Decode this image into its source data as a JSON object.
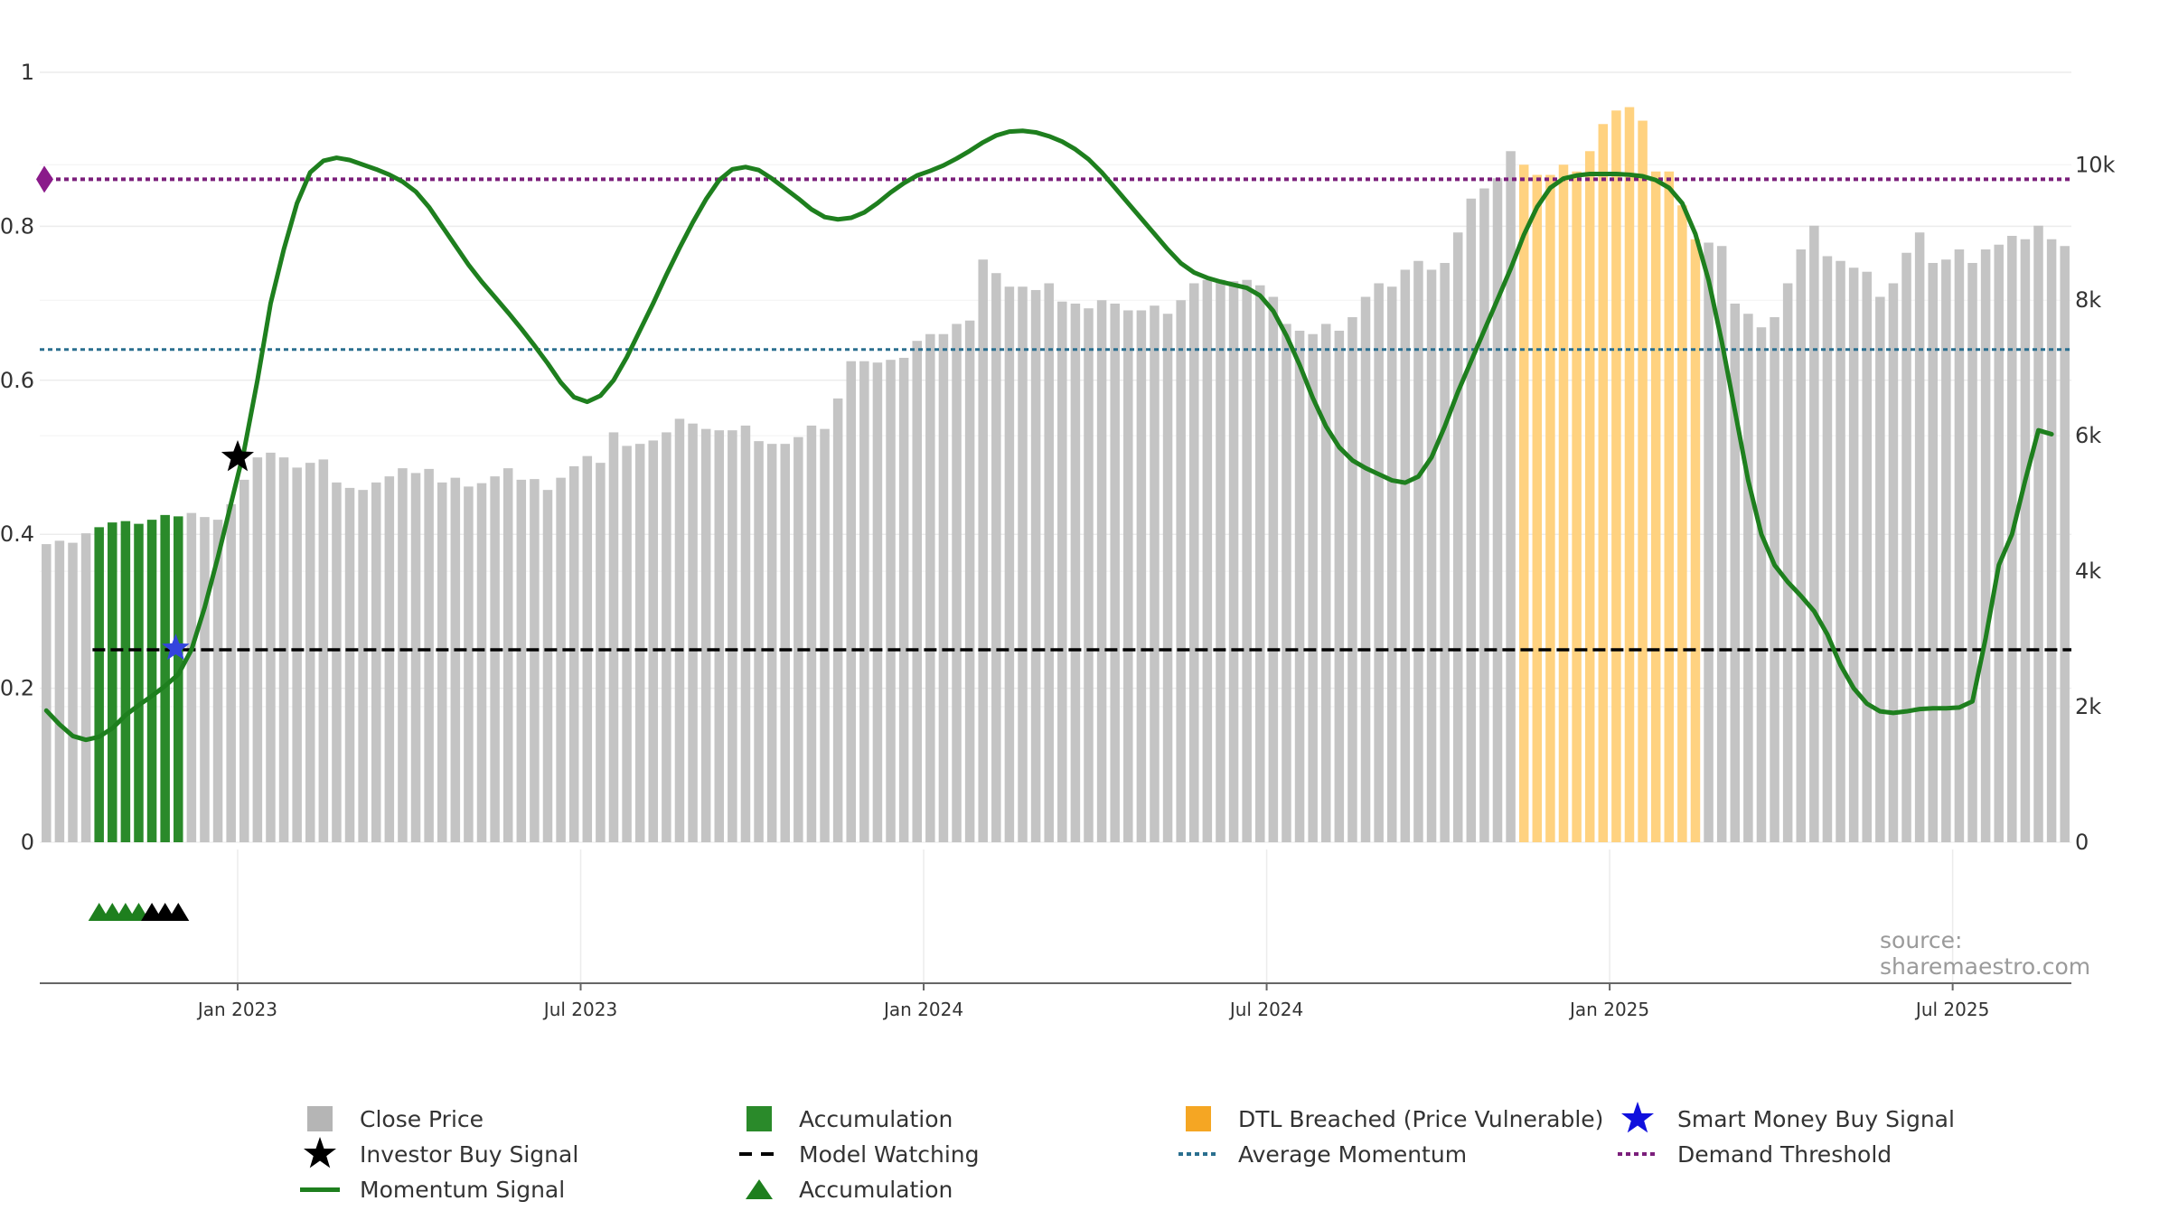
{
  "source_text": "source: sharemaestro.com",
  "chart_data": {
    "type": "bar",
    "left_axis": {
      "ticks": [
        "0",
        "0.2",
        "0.4",
        "0.6",
        "0.8",
        "1"
      ],
      "ylim": [
        0,
        1
      ]
    },
    "right_axis": {
      "ticks": [
        "0",
        "2k",
        "4k",
        "6k",
        "8k",
        "10k"
      ],
      "ylim": [
        0,
        11364
      ]
    },
    "x_axis": {
      "tick_labels": [
        "Jan 2023",
        "Jul 2023",
        "Jan 2024",
        "Jul 2024",
        "Jan 2025",
        "Jul 2025"
      ],
      "tick_weeks": [
        14.5,
        40.5,
        66.5,
        92.5,
        118.5,
        144.5
      ]
    },
    "close_price": [
      4400,
      4450,
      4420,
      4560,
      4650,
      4720,
      4740,
      4700,
      4760,
      4830,
      4810,
      4860,
      4800,
      4760,
      4990,
      5350,
      5680,
      5750,
      5680,
      5530,
      5600,
      5650,
      5310,
      5230,
      5200,
      5310,
      5400,
      5520,
      5450,
      5510,
      5310,
      5380,
      5250,
      5300,
      5400,
      5520,
      5350,
      5360,
      5200,
      5380,
      5550,
      5700,
      5600,
      6050,
      5850,
      5880,
      5930,
      6050,
      6250,
      6180,
      6100,
      6080,
      6080,
      6150,
      5920,
      5880,
      5880,
      5980,
      6150,
      6100,
      6550,
      7100,
      7100,
      7080,
      7120,
      7150,
      7400,
      7500,
      7500,
      7650,
      7700,
      8600,
      8400,
      8200,
      8200,
      8150,
      8250,
      7980,
      7950,
      7880,
      8000,
      7950,
      7850,
      7850,
      7920,
      7800,
      8000,
      8250,
      8300,
      8300,
      8280,
      8300,
      8220,
      8050,
      7650,
      7550,
      7500,
      7650,
      7550,
      7750,
      8050,
      8250,
      8200,
      8450,
      8580,
      8450,
      8550,
      9000,
      9500,
      9650,
      9800,
      10200,
      10000,
      9850,
      9850,
      10000,
      9900,
      10200,
      10600,
      10800,
      10850,
      10650,
      9900,
      9900,
      9400,
      8900,
      8850,
      8800,
      7950,
      7800,
      7600,
      7750,
      8250,
      8750,
      9100,
      8650,
      8580,
      8480,
      8420,
      8050,
      8250,
      8700,
      9000,
      8550,
      8600,
      8750,
      8550,
      8750,
      8820,
      8950,
      8900,
      9100,
      8900,
      8800
    ],
    "accumulation_range": [
      4,
      10
    ],
    "dtl_breached_range": [
      112,
      125
    ],
    "momentum_signal": [
      [
        0,
        0.171
      ],
      [
        1,
        0.153
      ],
      [
        2,
        0.138
      ],
      [
        3,
        0.133
      ],
      [
        4,
        0.137
      ],
      [
        5,
        0.148
      ],
      [
        6,
        0.165
      ],
      [
        7,
        0.178
      ],
      [
        8,
        0.19
      ],
      [
        9,
        0.203
      ],
      [
        10,
        0.218
      ],
      [
        11,
        0.25
      ],
      [
        12,
        0.305
      ],
      [
        13,
        0.37
      ],
      [
        14,
        0.44
      ],
      [
        15,
        0.51
      ],
      [
        16,
        0.6
      ],
      [
        17,
        0.7
      ],
      [
        18,
        0.77
      ],
      [
        19,
        0.83
      ],
      [
        20,
        0.87
      ],
      [
        21,
        0.885
      ],
      [
        22,
        0.889
      ],
      [
        23,
        0.886
      ],
      [
        24,
        0.88
      ],
      [
        25,
        0.874
      ],
      [
        26,
        0.867
      ],
      [
        27,
        0.858
      ],
      [
        28,
        0.845
      ],
      [
        29,
        0.825
      ],
      [
        30,
        0.8
      ],
      [
        31,
        0.775
      ],
      [
        32,
        0.75
      ],
      [
        33,
        0.728
      ],
      [
        34,
        0.708
      ],
      [
        35,
        0.688
      ],
      [
        36,
        0.667
      ],
      [
        37,
        0.645
      ],
      [
        38,
        0.622
      ],
      [
        39,
        0.597
      ],
      [
        40,
        0.578
      ],
      [
        41,
        0.572
      ],
      [
        42,
        0.58
      ],
      [
        43,
        0.6
      ],
      [
        44,
        0.63
      ],
      [
        45,
        0.665
      ],
      [
        46,
        0.7
      ],
      [
        47,
        0.737
      ],
      [
        48,
        0.772
      ],
      [
        49,
        0.805
      ],
      [
        50,
        0.835
      ],
      [
        51,
        0.86
      ],
      [
        52,
        0.874
      ],
      [
        53,
        0.877
      ],
      [
        54,
        0.873
      ],
      [
        55,
        0.862
      ],
      [
        56,
        0.849
      ],
      [
        57,
        0.836
      ],
      [
        58,
        0.822
      ],
      [
        59,
        0.812
      ],
      [
        60,
        0.809
      ],
      [
        61,
        0.811
      ],
      [
        62,
        0.818
      ],
      [
        63,
        0.83
      ],
      [
        64,
        0.844
      ],
      [
        65,
        0.856
      ],
      [
        66,
        0.866
      ],
      [
        67,
        0.872
      ],
      [
        68,
        0.879
      ],
      [
        69,
        0.888
      ],
      [
        70,
        0.898
      ],
      [
        71,
        0.909
      ],
      [
        72,
        0.918
      ],
      [
        73,
        0.923
      ],
      [
        74,
        0.924
      ],
      [
        75,
        0.922
      ],
      [
        76,
        0.917
      ],
      [
        77,
        0.91
      ],
      [
        78,
        0.9
      ],
      [
        79,
        0.887
      ],
      [
        80,
        0.87
      ],
      [
        81,
        0.85
      ],
      [
        82,
        0.83
      ],
      [
        83,
        0.81
      ],
      [
        84,
        0.79
      ],
      [
        85,
        0.77
      ],
      [
        86,
        0.752
      ],
      [
        87,
        0.74
      ],
      [
        88,
        0.733
      ],
      [
        89,
        0.728
      ],
      [
        90,
        0.724
      ],
      [
        91,
        0.72
      ],
      [
        92,
        0.71
      ],
      [
        93,
        0.69
      ],
      [
        94,
        0.658
      ],
      [
        95,
        0.62
      ],
      [
        96,
        0.577
      ],
      [
        97,
        0.54
      ],
      [
        98,
        0.513
      ],
      [
        99,
        0.496
      ],
      [
        100,
        0.486
      ],
      [
        101,
        0.478
      ],
      [
        102,
        0.47
      ],
      [
        103,
        0.467
      ],
      [
        104,
        0.475
      ],
      [
        105,
        0.5
      ],
      [
        106,
        0.54
      ],
      [
        107,
        0.585
      ],
      [
        108,
        0.625
      ],
      [
        109,
        0.665
      ],
      [
        110,
        0.705
      ],
      [
        111,
        0.745
      ],
      [
        112,
        0.789
      ],
      [
        113,
        0.825
      ],
      [
        114,
        0.85
      ],
      [
        115,
        0.862
      ],
      [
        116,
        0.866
      ],
      [
        117,
        0.868
      ],
      [
        118,
        0.868
      ],
      [
        119,
        0.868
      ],
      [
        120,
        0.867
      ],
      [
        121,
        0.865
      ],
      [
        122,
        0.86
      ],
      [
        123,
        0.85
      ],
      [
        124,
        0.83
      ],
      [
        125,
        0.79
      ],
      [
        126,
        0.73
      ],
      [
        127,
        0.65
      ],
      [
        128,
        0.56
      ],
      [
        129,
        0.47
      ],
      [
        130,
        0.4
      ],
      [
        131,
        0.36
      ],
      [
        132,
        0.338
      ],
      [
        133,
        0.32
      ],
      [
        134,
        0.3
      ],
      [
        135,
        0.27
      ],
      [
        136,
        0.23
      ],
      [
        137,
        0.2
      ],
      [
        138,
        0.18
      ],
      [
        139,
        0.17
      ],
      [
        140,
        0.168
      ],
      [
        141,
        0.17
      ],
      [
        142,
        0.173
      ],
      [
        143,
        0.174
      ],
      [
        144,
        0.174
      ],
      [
        145,
        0.175
      ],
      [
        146,
        0.183
      ],
      [
        147,
        0.265
      ],
      [
        148,
        0.36
      ],
      [
        149,
        0.4
      ],
      [
        150,
        0.47
      ],
      [
        151,
        0.535
      ],
      [
        152,
        0.53
      ]
    ],
    "average_momentum": 0.64,
    "demand_threshold": 0.861,
    "model_watching": 0.25,
    "model_watching_start_week": 4,
    "investor_buy_signal": {
      "week": 14.5,
      "value": 0.5
    },
    "smart_money_buy_signal": {
      "week": 9.8,
      "value": 0.252
    },
    "accumulation_markers": {
      "green_weeks": [
        4,
        5,
        6,
        7
      ],
      "black_weeks": [
        8,
        9,
        10
      ]
    },
    "demand_marker_value": 0.861,
    "legend": [
      {
        "label": "Close Price",
        "symbol": "square",
        "color": "#b5b5b5"
      },
      {
        "label": "Investor Buy Signal",
        "symbol": "star",
        "color": "#000000"
      },
      {
        "label": "Momentum Signal",
        "symbol": "solid-line",
        "color": "#1e7f1e"
      },
      {
        "label": "Accumulation",
        "symbol": "square",
        "color": "#2a8a2a"
      },
      {
        "label": "Model Watching",
        "symbol": "dashed-line",
        "color": "#000000"
      },
      {
        "label": "Accumulation",
        "symbol": "triangle",
        "color": "#1e7f1e"
      },
      {
        "label": "DTL Breached (Price Vulnerable)",
        "symbol": "square",
        "color": "#f5a623"
      },
      {
        "label": "Average Momentum",
        "symbol": "dotted-line",
        "color": "#2a6f8f"
      },
      {
        "label": "Smart Money Buy Signal",
        "symbol": "star",
        "color": "#1010dd"
      },
      {
        "label": "Demand Threshold",
        "symbol": "dotted-line",
        "color": "#7b1f7b"
      }
    ],
    "colors": {
      "close_price": "#c4c4c4",
      "accumulation": "#2a8a2a",
      "dtl": "#ffd280",
      "momentum": "#1e7f1e",
      "average_momentum": "#2a6f8f",
      "demand_threshold": "#7b1f7b",
      "model_watching": "#000000",
      "smart_money": "#3344dd"
    }
  }
}
